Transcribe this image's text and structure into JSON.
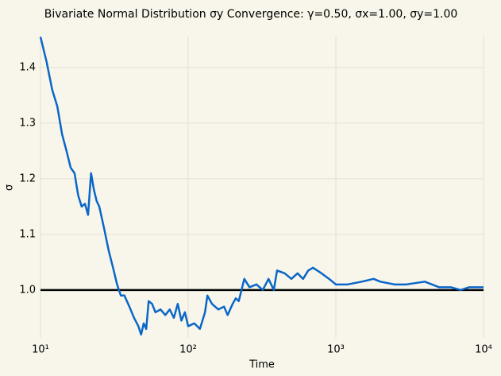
{
  "chart_data": {
    "type": "line",
    "title": "Bivariate Normal Distribution σy Convergence: γ=0.50, σx=1.00, σy=1.00",
    "x_label": "Time",
    "y_label": "σ",
    "x_scale": "log",
    "x": [
      10,
      11,
      12,
      13,
      14,
      15,
      16,
      17,
      18,
      19,
      20,
      21,
      22,
      23,
      24,
      25,
      27,
      29,
      31,
      33,
      35,
      37,
      40,
      43,
      46,
      48,
      50,
      52,
      54,
      57,
      60,
      65,
      70,
      75,
      80,
      85,
      90,
      95,
      100,
      110,
      120,
      125,
      130,
      135,
      145,
      160,
      175,
      185,
      200,
      210,
      220,
      240,
      260,
      290,
      320,
      350,
      380,
      400,
      450,
      500,
      550,
      600,
      650,
      700,
      800,
      900,
      1000,
      1200,
      1500,
      1800,
      2000,
      2500,
      3000,
      4000,
      5000,
      6000,
      7000,
      8000,
      10000
    ],
    "values": [
      1.455,
      1.41,
      1.36,
      1.33,
      1.28,
      1.25,
      1.22,
      1.21,
      1.17,
      1.15,
      1.155,
      1.135,
      1.21,
      1.18,
      1.16,
      1.15,
      1.11,
      1.07,
      1.04,
      1.01,
      0.99,
      0.99,
      0.97,
      0.95,
      0.935,
      0.92,
      0.94,
      0.93,
      0.98,
      0.975,
      0.96,
      0.965,
      0.955,
      0.965,
      0.95,
      0.975,
      0.945,
      0.96,
      0.935,
      0.94,
      0.93,
      0.945,
      0.96,
      0.99,
      0.975,
      0.965,
      0.97,
      0.955,
      0.975,
      0.985,
      0.98,
      1.02,
      1.005,
      1.01,
      1.0,
      1.02,
      1.0,
      1.035,
      1.03,
      1.02,
      1.03,
      1.02,
      1.035,
      1.04,
      1.03,
      1.02,
      1.01,
      1.01,
      1.015,
      1.02,
      1.015,
      1.01,
      1.01,
      1.015,
      1.005,
      1.005,
      1.0,
      1.005,
      1.005
    ],
    "color": "#0a66c8",
    "hline": 1.0,
    "hline_color": "#000000",
    "xlim": [
      10,
      10000
    ],
    "xticks": [
      {
        "value": 10,
        "label": "10¹"
      },
      {
        "value": 100,
        "label": "10²"
      },
      {
        "value": 1000,
        "label": "10³"
      },
      {
        "value": 10000,
        "label": "10⁴"
      }
    ],
    "ylim": [
      0.914,
      1.457
    ],
    "yticks": [
      {
        "value": 1.0,
        "label": "1.0"
      },
      {
        "value": 1.1,
        "label": "1.1"
      },
      {
        "value": 1.2,
        "label": "1.2"
      },
      {
        "value": 1.3,
        "label": "1.3"
      },
      {
        "value": 1.4,
        "label": "1.4"
      }
    ],
    "grid": true
  }
}
